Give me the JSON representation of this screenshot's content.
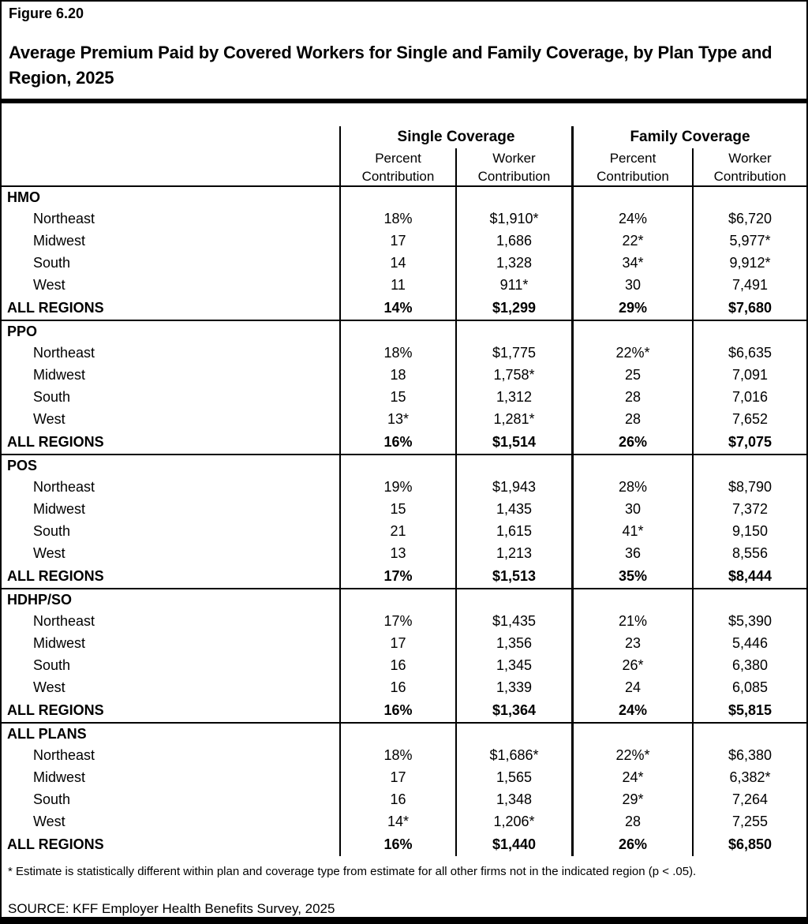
{
  "figure": {
    "label": "Figure 6.20",
    "title": "Average Premium Paid by Covered Workers for Single and Family Coverage, by Plan Type and Region, 2025"
  },
  "table": {
    "groups": [
      "Single Coverage",
      "Family Coverage"
    ],
    "sub_headers": [
      "Percent\nContribution",
      "Worker\nContribution",
      "Percent\nContribution",
      "Worker\nContribution"
    ],
    "sections": [
      {
        "plan": "HMO",
        "rows": [
          {
            "region": "Northeast",
            "values": [
              "18%",
              "$1,910*",
              "24%",
              "$6,720"
            ]
          },
          {
            "region": "Midwest",
            "values": [
              "17",
              "1,686",
              "22*",
              "5,977*"
            ]
          },
          {
            "region": "South",
            "values": [
              "14",
              "1,328",
              "34*",
              "9,912*"
            ]
          },
          {
            "region": "West",
            "values": [
              "11",
              "911*",
              "30",
              "7,491"
            ]
          }
        ],
        "total": {
          "region": "ALL REGIONS",
          "values": [
            "14%",
            "$1,299",
            "29%",
            "$7,680"
          ]
        }
      },
      {
        "plan": "PPO",
        "rows": [
          {
            "region": "Northeast",
            "values": [
              "18%",
              "$1,775",
              "22%*",
              "$6,635"
            ]
          },
          {
            "region": "Midwest",
            "values": [
              "18",
              "1,758*",
              "25",
              "7,091"
            ]
          },
          {
            "region": "South",
            "values": [
              "15",
              "1,312",
              "28",
              "7,016"
            ]
          },
          {
            "region": "West",
            "values": [
              "13*",
              "1,281*",
              "28",
              "7,652"
            ]
          }
        ],
        "total": {
          "region": "ALL REGIONS",
          "values": [
            "16%",
            "$1,514",
            "26%",
            "$7,075"
          ]
        }
      },
      {
        "plan": "POS",
        "rows": [
          {
            "region": "Northeast",
            "values": [
              "19%",
              "$1,943",
              "28%",
              "$8,790"
            ]
          },
          {
            "region": "Midwest",
            "values": [
              "15",
              "1,435",
              "30",
              "7,372"
            ]
          },
          {
            "region": "South",
            "values": [
              "21",
              "1,615",
              "41*",
              "9,150"
            ]
          },
          {
            "region": "West",
            "values": [
              "13",
              "1,213",
              "36",
              "8,556"
            ]
          }
        ],
        "total": {
          "region": "ALL REGIONS",
          "values": [
            "17%",
            "$1,513",
            "35%",
            "$8,444"
          ]
        }
      },
      {
        "plan": "HDHP/SO",
        "rows": [
          {
            "region": "Northeast",
            "values": [
              "17%",
              "$1,435",
              "21%",
              "$5,390"
            ]
          },
          {
            "region": "Midwest",
            "values": [
              "17",
              "1,356",
              "23",
              "5,446"
            ]
          },
          {
            "region": "South",
            "values": [
              "16",
              "1,345",
              "26*",
              "6,380"
            ]
          },
          {
            "region": "West",
            "values": [
              "16",
              "1,339",
              "24",
              "6,085"
            ]
          }
        ],
        "total": {
          "region": "ALL REGIONS",
          "values": [
            "16%",
            "$1,364",
            "24%",
            "$5,815"
          ]
        }
      },
      {
        "plan": "ALL PLANS",
        "rows": [
          {
            "region": "Northeast",
            "values": [
              "18%",
              "$1,686*",
              "22%*",
              "$6,380"
            ]
          },
          {
            "region": "Midwest",
            "values": [
              "17",
              "1,565",
              "24*",
              "6,382*"
            ]
          },
          {
            "region": "South",
            "values": [
              "16",
              "1,348",
              "29*",
              "7,264"
            ]
          },
          {
            "region": "West",
            "values": [
              "14*",
              "1,206*",
              "28",
              "7,255"
            ]
          }
        ],
        "total": {
          "region": "ALL REGIONS",
          "values": [
            "16%",
            "$1,440",
            "26%",
            "$6,850"
          ]
        }
      }
    ]
  },
  "footnote": "* Estimate is statistically different within plan and coverage type from estimate for all other firms not in the indicated region (p < .05).",
  "source": "SOURCE: KFF Employer Health Benefits Survey, 2025"
}
